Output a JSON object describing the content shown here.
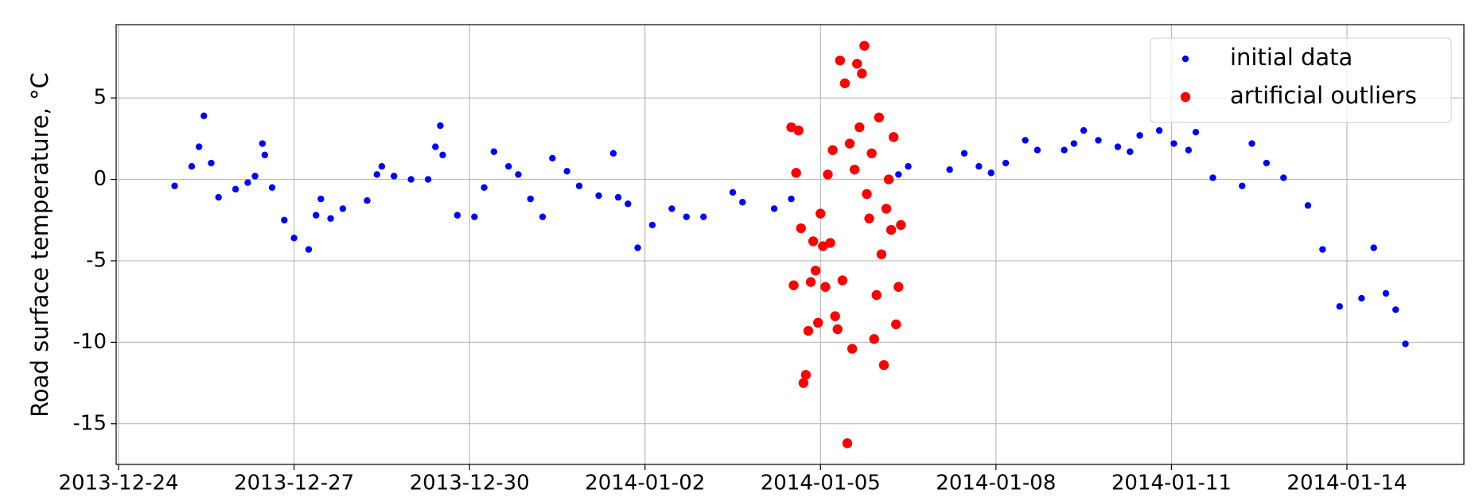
{
  "chart_data": {
    "type": "scatter",
    "y_label": "Road surface temperature, °C",
    "xlim": [
      "2013-12-23 23:00",
      "2014-01-16 00:00"
    ],
    "ylim": [
      -17.5,
      9.5
    ],
    "xticks": [
      "2013-12-24",
      "2013-12-27",
      "2013-12-30",
      "2014-01-02",
      "2014-01-05",
      "2014-01-08",
      "2014-01-11",
      "2014-01-14"
    ],
    "yticks": [
      -15,
      -10,
      -5,
      0,
      5
    ],
    "grid": true,
    "legend": "upper right",
    "series": [
      {
        "name": "initial data",
        "color": "#0000ff",
        "x": [
          "2013-12-24 23:00",
          "2013-12-25 06:00",
          "2013-12-25 09:00",
          "2013-12-25 11:00",
          "2013-12-25 14:00",
          "2013-12-25 17:00",
          "2013-12-26 00:00",
          "2013-12-26 05:00",
          "2013-12-26 08:00",
          "2013-12-26 11:00",
          "2013-12-26 12:00",
          "2013-12-26 15:00",
          "2013-12-26 20:00",
          "2013-12-27 00:00",
          "2013-12-27 06:00",
          "2013-12-27 09:00",
          "2013-12-27 11:00",
          "2013-12-27 15:00",
          "2013-12-27 20:00",
          "2013-12-28 06:00",
          "2013-12-28 10:00",
          "2013-12-28 12:00",
          "2013-12-28 17:00",
          "2013-12-29 00:00",
          "2013-12-29 07:00",
          "2013-12-29 10:00",
          "2013-12-29 12:00",
          "2013-12-29 13:00",
          "2013-12-29 19:00",
          "2013-12-30 02:00",
          "2013-12-30 06:00",
          "2013-12-30 10:00",
          "2013-12-30 16:00",
          "2013-12-30 20:00",
          "2013-12-31 01:00",
          "2013-12-31 06:00",
          "2013-12-31 10:00",
          "2013-12-31 16:00",
          "2013-12-31 21:00",
          "2014-01-01 05:00",
          "2014-01-01 11:00",
          "2014-01-01 13:00",
          "2014-01-01 17:00",
          "2014-01-01 21:00",
          "2014-01-02 03:00",
          "2014-01-02 11:00",
          "2014-01-02 17:00",
          "2014-01-03 00:00",
          "2014-01-03 12:00",
          "2014-01-03 16:00",
          "2014-01-04 05:00",
          "2014-01-04 12:00",
          "2014-01-06 08:00",
          "2014-01-06 12:00",
          "2014-01-07 05:00",
          "2014-01-07 11:00",
          "2014-01-07 17:00",
          "2014-01-07 22:00",
          "2014-01-08 04:00",
          "2014-01-08 12:00",
          "2014-01-08 17:00",
          "2014-01-09 04:00",
          "2014-01-09 08:00",
          "2014-01-09 12:00",
          "2014-01-09 18:00",
          "2014-01-10 02:00",
          "2014-01-10 07:00",
          "2014-01-10 11:00",
          "2014-01-10 19:00",
          "2014-01-11 01:00",
          "2014-01-11 07:00",
          "2014-01-11 10:00",
          "2014-01-11 17:00",
          "2014-01-12 05:00",
          "2014-01-12 09:00",
          "2014-01-12 15:00",
          "2014-01-12 22:00",
          "2014-01-13 08:00",
          "2014-01-13 14:00",
          "2014-01-13 21:00",
          "2014-01-14 06:00",
          "2014-01-14 11:00",
          "2014-01-14 16:00",
          "2014-01-14 20:00",
          "2014-01-15 00:00"
        ],
        "values": [
          -0.4,
          0.8,
          2,
          3.9,
          1,
          -1.1,
          -0.6,
          -0.2,
          0.2,
          2.2,
          1.5,
          -0.5,
          -2.5,
          -3.6,
          -4.3,
          -2.2,
          -1.2,
          -2.4,
          -1.8,
          -1.3,
          0.3,
          0.8,
          0.2,
          0.0,
          0.0,
          2,
          3.3,
          1.5,
          -2.2,
          -2.3,
          -0.5,
          1.7,
          0.8,
          0.3,
          -1.2,
          -2.3,
          1.3,
          0.5,
          -0.4,
          -1.0,
          1.6,
          -1.1,
          -1.5,
          -4.2,
          -2.8,
          -1.8,
          -2.3,
          -2.3,
          -0.8,
          -1.4,
          -1.8,
          -1.2,
          0.3,
          0.8,
          0.6,
          1.6,
          0.8,
          0.4,
          1.0,
          2.4,
          1.8,
          1.8,
          2.2,
          3.0,
          2.4,
          2.0,
          1.7,
          2.7,
          3.0,
          2.2,
          1.8,
          2.9,
          0.1,
          -0.4,
          2.2,
          1.0,
          0.1,
          -1.6,
          -4.3,
          -7.8,
          -7.3,
          -4.2,
          -7.0,
          -8.0,
          -10.1
        ]
      },
      {
        "name": "artificial outliers",
        "color": "#ff0000",
        "x": [
          "2014-01-04 12:00",
          "2014-01-04 13:00",
          "2014-01-04 14:00",
          "2014-01-04 15:00",
          "2014-01-04 16:00",
          "2014-01-04 17:00",
          "2014-01-04 18:00",
          "2014-01-04 19:00",
          "2014-01-04 20:00",
          "2014-01-04 21:00",
          "2014-01-04 22:00",
          "2014-01-04 23:00",
          "2014-01-05 00:00",
          "2014-01-05 01:00",
          "2014-01-05 02:00",
          "2014-01-05 03:00",
          "2014-01-05 04:00",
          "2014-01-05 05:00",
          "2014-01-05 06:00",
          "2014-01-05 07:00",
          "2014-01-05 08:00",
          "2014-01-05 09:00",
          "2014-01-05 10:00",
          "2014-01-05 11:00",
          "2014-01-05 12:00",
          "2014-01-05 13:00",
          "2014-01-05 14:00",
          "2014-01-05 15:00",
          "2014-01-05 16:00",
          "2014-01-05 17:00",
          "2014-01-05 18:00",
          "2014-01-05 19:00",
          "2014-01-05 20:00",
          "2014-01-05 21:00",
          "2014-01-05 22:00",
          "2014-01-05 23:00",
          "2014-01-06 00:00",
          "2014-01-06 01:00",
          "2014-01-06 02:00",
          "2014-01-06 03:00",
          "2014-01-06 04:00",
          "2014-01-06 05:00",
          "2014-01-06 06:00",
          "2014-01-06 07:00",
          "2014-01-06 08:00",
          "2014-01-06 09:00"
        ],
        "values": [
          3.2,
          -6.5,
          0.4,
          3.0,
          -3.0,
          -12.5,
          -12.0,
          -9.3,
          -6.3,
          -3.8,
          -5.6,
          -8.8,
          -2.1,
          -4.1,
          -6.6,
          0.3,
          -3.9,
          1.8,
          -8.4,
          -9.2,
          7.3,
          -6.2,
          5.9,
          -16.2,
          2.2,
          -10.4,
          0.6,
          7.1,
          3.2,
          6.5,
          8.2,
          -0.9,
          -2.4,
          1.6,
          -9.8,
          -7.1,
          3.8,
          -4.6,
          -11.4,
          -1.8,
          0.0,
          -3.1,
          2.6,
          -8.9,
          -6.6,
          -2.8
        ]
      }
    ]
  }
}
